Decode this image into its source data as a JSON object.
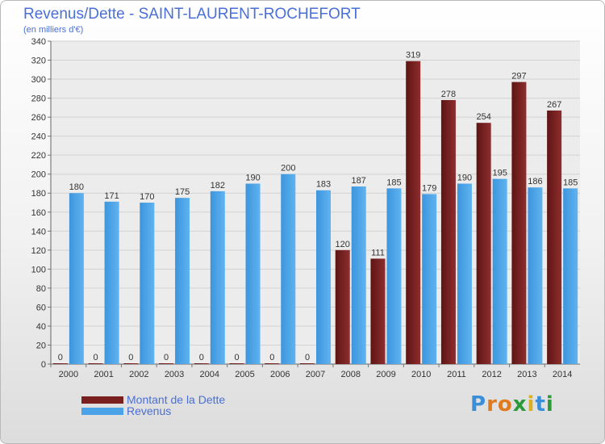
{
  "header": {
    "title": "Revenus/Dette - SAINT-LAURENT-ROCHEFORT",
    "subtitle": "(en milliers d'€)"
  },
  "legend": {
    "items": [
      {
        "label": "Montant de la Dette",
        "color": "#7a1f1f"
      },
      {
        "label": "Revenus",
        "color": "#4aa3e6"
      }
    ]
  },
  "logo": {
    "text": "Proxiti"
  },
  "chart_data": {
    "type": "bar",
    "title": "Revenus/Dette - SAINT-LAURENT-ROCHEFORT",
    "subtitle": "(en milliers d'€)",
    "categories": [
      "2000",
      "2001",
      "2002",
      "2003",
      "2004",
      "2005",
      "2006",
      "2007",
      "2008",
      "2009",
      "2010",
      "2011",
      "2012",
      "2013",
      "2014"
    ],
    "series": [
      {
        "name": "Montant de la Dette",
        "color": "#7a1f1f",
        "values": [
          0,
          0,
          0,
          0,
          0,
          0,
          0,
          0,
          120,
          111,
          319,
          278,
          254,
          297,
          267
        ]
      },
      {
        "name": "Revenus",
        "color": "#4aa3e6",
        "values": [
          180,
          171,
          170,
          175,
          182,
          190,
          200,
          183,
          187,
          185,
          179,
          190,
          195,
          186,
          185
        ]
      }
    ],
    "ylim": [
      0,
      340
    ],
    "ytick_step": 20,
    "grid": true,
    "legend_position": "bottom-left"
  }
}
